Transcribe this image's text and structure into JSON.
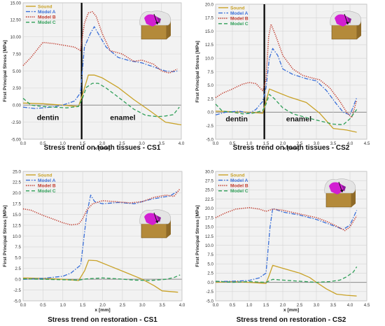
{
  "colors": {
    "sound": "#c9a227",
    "model_a": "#3a6fd8",
    "model_b": "#c0392b",
    "model_c": "#2e9e57",
    "divider": "#000000",
    "plot_bg": "#f2f2f2",
    "grid": "#d4d4d4",
    "zero_line": "#8a8a8a"
  },
  "tooth_icon": "tooth-cross-section-icon",
  "chart_data": [
    {
      "type": "line",
      "title": "Stress trend on tooth tissues -  CS1",
      "xlabel": "x [mm]",
      "ylabel": "First Principal Stress [MPa]",
      "xlim": [
        0,
        4
      ],
      "ylim": [
        -5,
        15
      ],
      "xticks": [
        "0.0",
        "0.5",
        "1.0",
        "1.5",
        "2.0",
        "2.5",
        "3.0",
        "3.5",
        "4.0"
      ],
      "yticks": [
        "-5.00",
        "-2.50",
        "0.00",
        "2.50",
        "5.00",
        "7.50",
        "10.00",
        "12.50",
        "15.00"
      ],
      "grid": true,
      "legend": "top-left",
      "divider_x": 1.48,
      "region_labels": [
        {
          "text": "dentin",
          "x": 0.35,
          "y": -2.2
        },
        {
          "text": "enamel",
          "x": 2.2,
          "y": -2.2
        }
      ],
      "series": [
        {
          "name": "Sound",
          "style": "solid",
          "color": "#c9a227",
          "x": [
            0,
            0.5,
            1.0,
            1.4,
            1.5,
            1.65,
            1.8,
            2.0,
            2.4,
            2.8,
            3.2,
            3.6,
            4.0
          ],
          "y": [
            0.3,
            0.2,
            0.0,
            -0.2,
            1.5,
            4.4,
            4.4,
            4.0,
            2.6,
            0.8,
            -0.8,
            -2.5,
            -2.9
          ]
        },
        {
          "name": "Model A",
          "style": "dashdot",
          "color": "#3a6fd8",
          "x": [
            0,
            0.3,
            0.7,
            1.0,
            1.3,
            1.45,
            1.55,
            1.7,
            1.8,
            1.9,
            2.1,
            2.4,
            2.7,
            3.0,
            3.3,
            3.6,
            3.8,
            3.9
          ],
          "y": [
            -0.3,
            -0.5,
            -0.3,
            0.0,
            0.6,
            1.8,
            8.5,
            10.5,
            11.5,
            10.5,
            8.5,
            7.0,
            6.5,
            6.2,
            5.6,
            5.0,
            4.9,
            5.0
          ]
        },
        {
          "name": "Model B",
          "style": "dotted",
          "color": "#c0392b",
          "x": [
            0,
            0.2,
            0.5,
            0.8,
            1.1,
            1.3,
            1.45,
            1.55,
            1.65,
            1.75,
            1.85,
            2.0,
            2.2,
            2.5,
            2.8,
            3.0,
            3.3,
            3.5,
            3.7,
            3.9
          ],
          "y": [
            5.8,
            7.0,
            9.2,
            9.0,
            8.7,
            8.5,
            8.0,
            12.0,
            13.5,
            13.7,
            13.0,
            10.5,
            8.0,
            7.5,
            6.4,
            6.6,
            6.0,
            5.0,
            4.7,
            5.3
          ]
        },
        {
          "name": "Model C",
          "style": "dashed",
          "color": "#2e9e57",
          "x": [
            0,
            0.2,
            0.5,
            0.8,
            1.1,
            1.4,
            1.5,
            1.6,
            1.75,
            1.9,
            2.1,
            2.4,
            2.8,
            3.1,
            3.4,
            3.6,
            3.8,
            3.95
          ],
          "y": [
            1.0,
            0.0,
            -0.2,
            -0.3,
            -0.4,
            -0.2,
            1.0,
            2.6,
            3.2,
            3.2,
            2.5,
            1.2,
            -0.6,
            -1.5,
            -1.7,
            -1.6,
            -1.4,
            -0.3
          ]
        }
      ]
    },
    {
      "type": "line",
      "title": "Stress trend on tooth tissues -  CS2",
      "xlabel": "x [mm]",
      "ylabel": "First Principal Stress [MPa]",
      "xlim": [
        0,
        4.5
      ],
      "ylim": [
        -5,
        20
      ],
      "xticks": [
        "0.0",
        "0.5",
        "1.0",
        "1.5",
        "2.0",
        "2.5",
        "3.0",
        "3.5",
        "4.0",
        "4.5"
      ],
      "yticks": [
        "-5.0",
        "-2.5",
        "0.0",
        "2.5",
        "5.0",
        "7.5",
        "10.0",
        "12.5",
        "15.0",
        "17.5",
        "20.0"
      ],
      "grid": true,
      "legend": "top-left",
      "divider_x": 1.45,
      "region_labels": [
        {
          "text": "dentin",
          "x": 0.3,
          "y": -1.7
        },
        {
          "text": "enamel",
          "x": 2.1,
          "y": -1.7
        }
      ],
      "series": [
        {
          "name": "Sound",
          "style": "solid",
          "color": "#c9a227",
          "x": [
            0,
            0.5,
            1.0,
            1.4,
            1.5,
            1.6,
            1.8,
            2.2,
            2.7,
            3.1,
            3.5,
            3.9,
            4.2
          ],
          "y": [
            0.2,
            0.1,
            0.0,
            -0.2,
            2.0,
            4.3,
            3.8,
            2.8,
            1.8,
            -0.2,
            -3.0,
            -3.3,
            -3.7
          ]
        },
        {
          "name": "Model A",
          "style": "dashdot",
          "color": "#3a6fd8",
          "x": [
            0,
            0.3,
            0.7,
            1.0,
            1.2,
            1.4,
            1.5,
            1.6,
            1.7,
            1.85,
            2.0,
            2.3,
            2.7,
            3.0,
            3.3,
            3.6,
            3.8,
            4.0,
            4.2
          ],
          "y": [
            -0.5,
            0.0,
            0.2,
            -0.2,
            0.5,
            2.0,
            4.5,
            10.0,
            11.8,
            10.5,
            8.0,
            7.0,
            6.2,
            5.8,
            4.0,
            1.5,
            0.0,
            -0.5,
            2.7
          ]
        },
        {
          "name": "Model B",
          "style": "dotted",
          "color": "#c0392b",
          "x": [
            0,
            0.2,
            0.5,
            0.8,
            1.0,
            1.2,
            1.4,
            1.5,
            1.58,
            1.65,
            1.8,
            2.0,
            2.3,
            2.6,
            2.9,
            3.1,
            3.4,
            3.7,
            3.9,
            4.05,
            4.2
          ],
          "y": [
            2.7,
            3.5,
            4.3,
            5.2,
            5.5,
            5.3,
            4.0,
            6.0,
            14.0,
            16.3,
            14.0,
            10.5,
            8.0,
            6.8,
            6.3,
            6.0,
            4.5,
            2.0,
            0.0,
            -1.0,
            2.2
          ]
        },
        {
          "name": "Model C",
          "style": "dashed",
          "color": "#2e9e57",
          "x": [
            0,
            0.2,
            0.5,
            0.8,
            1.1,
            1.4,
            1.5,
            1.6,
            1.75,
            2.0,
            2.3,
            2.7,
            3.1,
            3.5,
            3.8,
            4.0,
            4.2
          ],
          "y": [
            1.5,
            0.2,
            0.0,
            -0.3,
            -0.2,
            0.3,
            1.5,
            3.3,
            2.5,
            0.8,
            -0.3,
            -1.0,
            -1.6,
            -2.2,
            -2.3,
            -1.2,
            0.5
          ]
        }
      ]
    },
    {
      "type": "line",
      "title": "Stress trend on restoration -  CS1",
      "xlabel": "x [mm]",
      "ylabel": "First Principal Stress [MPa]",
      "xlim": [
        0,
        4
      ],
      "ylim": [
        -5,
        25
      ],
      "xticks": [
        "0.0",
        "0.5",
        "1.0",
        "1.5",
        "2.0",
        "2.5",
        "3.0",
        "3.5",
        "4.0"
      ],
      "yticks": [
        "-5.0",
        "-2.5",
        "0.0",
        "2.5",
        "5.0",
        "7.5",
        "10.0",
        "12.5",
        "15.0",
        "17.5",
        "20.0",
        "22.5",
        "25.0"
      ],
      "grid": true,
      "legend": "top-left",
      "series": [
        {
          "name": "Sound",
          "style": "solid",
          "color": "#c9a227",
          "x": [
            0,
            0.5,
            1.0,
            1.4,
            1.55,
            1.65,
            1.85,
            2.2,
            2.6,
            3.0,
            3.3,
            3.5,
            3.9
          ],
          "y": [
            0.3,
            0.2,
            0.0,
            -0.3,
            2.0,
            4.4,
            4.3,
            3.0,
            1.5,
            0.0,
            -1.5,
            -2.7,
            -3.0
          ]
        },
        {
          "name": "Model A",
          "style": "dashdot",
          "color": "#3a6fd8",
          "x": [
            0,
            0.5,
            1.0,
            1.2,
            1.45,
            1.6,
            1.7,
            1.8,
            2.0,
            2.4,
            2.8,
            3.2,
            3.5,
            3.7,
            3.9
          ],
          "y": [
            0.0,
            0.2,
            0.7,
            1.4,
            3.3,
            15.0,
            19.5,
            18.0,
            17.5,
            17.8,
            17.5,
            18.5,
            19.0,
            19.3,
            20.5
          ]
        },
        {
          "name": "Model B",
          "style": "dotted",
          "color": "#c0392b",
          "x": [
            0,
            0.2,
            0.5,
            0.8,
            1.0,
            1.2,
            1.4,
            1.5,
            1.6,
            1.75,
            2.0,
            2.3,
            2.7,
            3.0,
            3.3,
            3.6,
            3.8,
            3.95
          ],
          "y": [
            16.3,
            16.0,
            14.8,
            13.8,
            13.1,
            12.6,
            12.8,
            14.0,
            16.0,
            17.5,
            18.2,
            18.0,
            17.7,
            18.0,
            19.0,
            19.5,
            19.2,
            21.0
          ]
        },
        {
          "name": "Model C",
          "style": "dashed",
          "color": "#2e9e57",
          "x": [
            0,
            0.5,
            1.0,
            1.4,
            1.6,
            2.0,
            2.4,
            2.8,
            3.2,
            3.6,
            3.8,
            3.95
          ],
          "y": [
            0.1,
            0.0,
            -0.1,
            -0.2,
            0.1,
            0.3,
            0.1,
            -0.2,
            -0.3,
            0.0,
            0.4,
            1.0
          ]
        }
      ]
    },
    {
      "type": "line",
      "title": "Stress trend on restoration -  CS2",
      "xlabel": "x [mm]",
      "ylabel": "First Principal Stress [MPa]",
      "xlim": [
        0,
        4.5
      ],
      "ylim": [
        -5,
        30
      ],
      "xticks": [
        "0.0",
        "0.5",
        "1.0",
        "1.5",
        "2.0",
        "2.5",
        "3.0",
        "3.5",
        "4.0",
        "4.5"
      ],
      "yticks": [
        "-5.0",
        "-2.5",
        "0.0",
        "2.5",
        "5.0",
        "7.5",
        "10.0",
        "12.5",
        "15.0",
        "17.5",
        "20.0",
        "22.5",
        "25.0",
        "27.5",
        "30.0"
      ],
      "grid": true,
      "legend": "top-left",
      "series": [
        {
          "name": "Sound",
          "style": "solid",
          "color": "#c9a227",
          "x": [
            0,
            0.5,
            1.0,
            1.5,
            1.6,
            1.7,
            2.0,
            2.5,
            2.8,
            3.0,
            3.3,
            3.6,
            3.9,
            4.2
          ],
          "y": [
            0.0,
            0.2,
            0.0,
            -0.3,
            2.0,
            4.6,
            3.8,
            2.5,
            1.3,
            0.0,
            -1.8,
            -3.2,
            -3.5,
            -3.7
          ]
        },
        {
          "name": "Model A",
          "style": "dashdot",
          "color": "#3a6fd8",
          "x": [
            0,
            0.5,
            1.0,
            1.3,
            1.5,
            1.62,
            1.7,
            1.85,
            2.0,
            2.5,
            3.0,
            3.3,
            3.6,
            3.8,
            4.0,
            4.2
          ],
          "y": [
            0.2,
            0.3,
            0.5,
            1.2,
            2.5,
            15.0,
            20.0,
            19.5,
            19.0,
            18.2,
            17.0,
            16.0,
            15.0,
            14.3,
            15.5,
            19.5
          ]
        },
        {
          "name": "Model B",
          "style": "dotted",
          "color": "#c0392b",
          "x": [
            0,
            0.3,
            0.6,
            1.0,
            1.3,
            1.5,
            1.7,
            2.0,
            2.5,
            3.0,
            3.3,
            3.6,
            3.85,
            4.0,
            4.2
          ],
          "y": [
            17.5,
            18.8,
            19.8,
            20.2,
            19.8,
            19.2,
            19.8,
            19.5,
            18.5,
            17.5,
            16.5,
            15.2,
            14.0,
            15.0,
            18.0
          ]
        },
        {
          "name": "Model C",
          "style": "dashed",
          "color": "#2e9e57",
          "x": [
            0,
            0.5,
            1.0,
            1.5,
            1.7,
            2.0,
            2.5,
            3.0,
            3.4,
            3.7,
            3.9,
            4.1,
            4.2
          ],
          "y": [
            0.3,
            0.0,
            0.2,
            0.0,
            0.8,
            0.6,
            0.3,
            0.0,
            0.2,
            0.6,
            1.5,
            2.8,
            4.2
          ]
        }
      ]
    }
  ]
}
